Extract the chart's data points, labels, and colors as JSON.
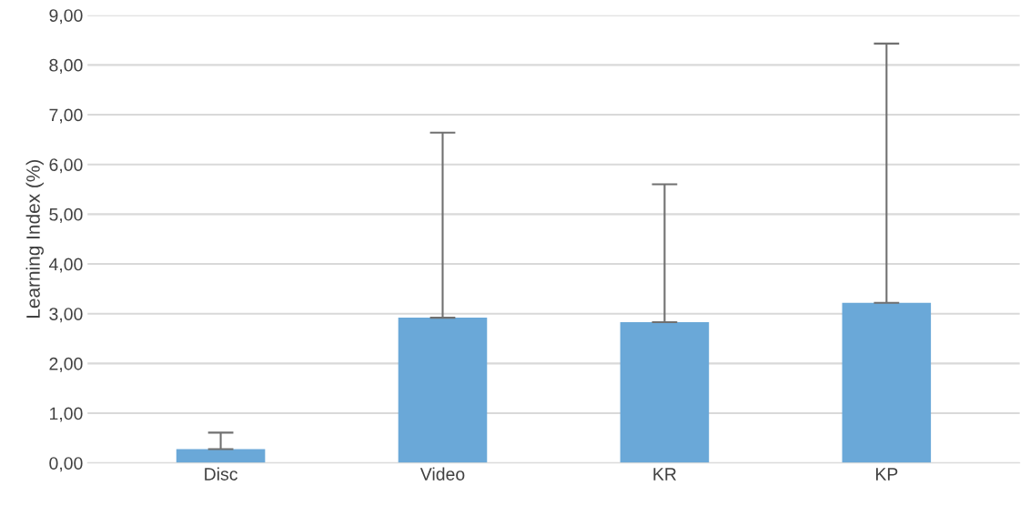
{
  "chart_data": {
    "type": "bar",
    "ylabel": "Learning Index (%)",
    "categories": [
      "Disc",
      "Video",
      "KR",
      "KP"
    ],
    "values": [
      0.28,
      2.92,
      2.83,
      3.22
    ],
    "errors": [
      [
        0.28,
        0.61
      ],
      [
        2.92,
        6.64
      ],
      [
        2.83,
        5.6
      ],
      [
        3.22,
        8.43
      ]
    ],
    "color": "#6aa8d8",
    "ylim": [
      0,
      9
    ],
    "yticks": [
      {
        "value": 0,
        "label": "0,00"
      },
      {
        "value": 1,
        "label": "1,00"
      },
      {
        "value": 2,
        "label": "2,00"
      },
      {
        "value": 3,
        "label": "3,00"
      },
      {
        "value": 4,
        "label": "4,00"
      },
      {
        "value": 5,
        "label": "5,00"
      },
      {
        "value": 6,
        "label": "6,00"
      },
      {
        "value": 7,
        "label": "7,00"
      },
      {
        "value": 8,
        "label": "8,00"
      },
      {
        "value": 9,
        "label": "9,00"
      }
    ],
    "grid": "y"
  }
}
